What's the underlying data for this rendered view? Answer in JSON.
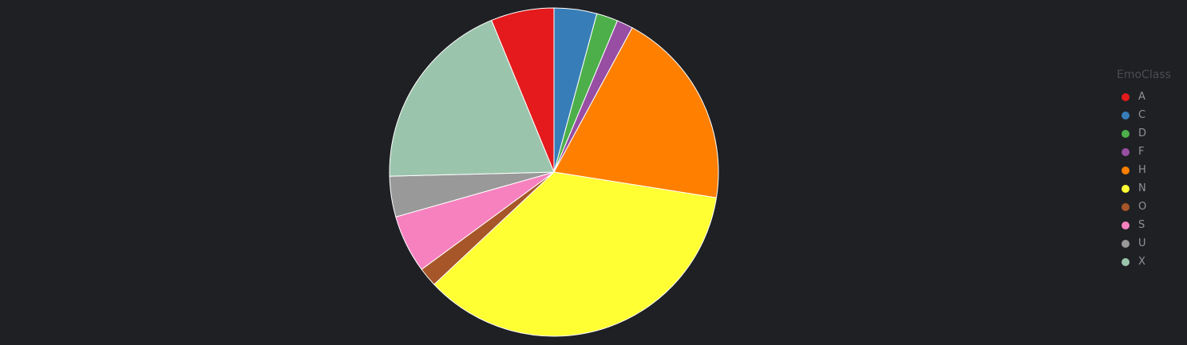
{
  "chart_data": {
    "type": "pie",
    "legend_title": "EmoClass",
    "legend_position": "right",
    "slices": [
      {
        "label": "A",
        "value": 6.2,
        "color": "#e41a1c"
      },
      {
        "label": "C",
        "value": 4.2,
        "color": "#377eb8"
      },
      {
        "label": "D",
        "value": 2.1,
        "color": "#4daf4a"
      },
      {
        "label": "F",
        "value": 1.6,
        "color": "#984ea3"
      },
      {
        "label": "H",
        "value": 19.6,
        "color": "#ff7f00"
      },
      {
        "label": "N",
        "value": 35.5,
        "color": "#ffff33"
      },
      {
        "label": "O",
        "value": 1.9,
        "color": "#a65628"
      },
      {
        "label": "S",
        "value": 5.7,
        "color": "#f781bf"
      },
      {
        "label": "U",
        "value": 4.0,
        "color": "#999999"
      },
      {
        "label": "X",
        "value": 19.2,
        "color": "#9bc4ac"
      }
    ],
    "draw_order": [
      "A",
      "X",
      "U",
      "S",
      "O",
      "N",
      "H",
      "F",
      "D",
      "C"
    ]
  }
}
